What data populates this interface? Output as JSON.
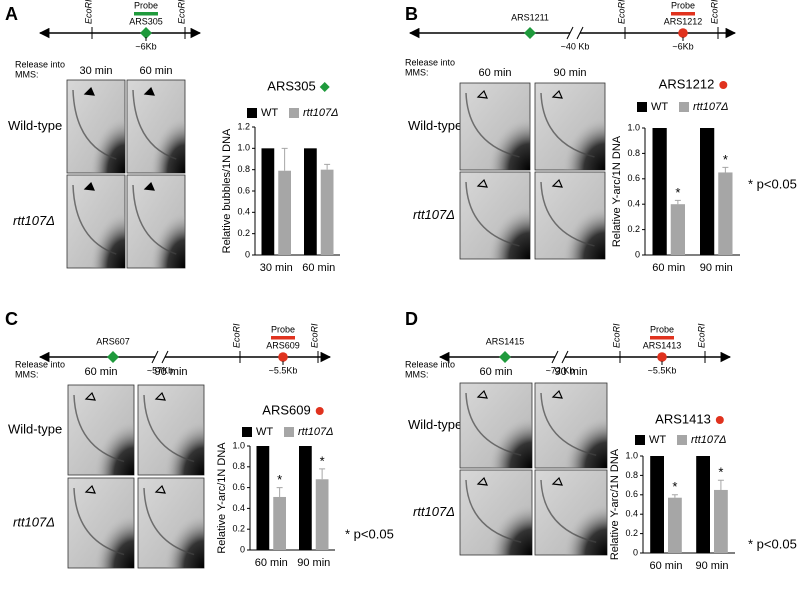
{
  "panels": [
    {
      "letter": "A",
      "map": {
        "ecori": [
          "EcoRI",
          "EcoRI"
        ],
        "probe": "Probe",
        "ars": "ARS305",
        "distance": "~6Kb"
      },
      "gel": {
        "release": [
          "Release into",
          "MMS:"
        ],
        "columns": [
          "30 min",
          "60 min"
        ],
        "rows": [
          "Wild-type",
          "rtt107Δ"
        ]
      }
    },
    {
      "letter": "B",
      "map": {
        "ars_left": "ARS1211",
        "gap": "~40 Kb",
        "ecori": [
          "EcoRI",
          "EcoRI"
        ],
        "probe": "Probe",
        "ars": "ARS1212",
        "distance": "~6Kb"
      },
      "gel": {
        "release": [
          "Release into",
          "MMS:"
        ],
        "columns": [
          "60 min",
          "90 min"
        ],
        "rows": [
          "Wild-type",
          "rtt107Δ"
        ]
      },
      "footnote": "* p<0.05"
    },
    {
      "letter": "C",
      "map": {
        "ars_left": "ARS607",
        "gap": "~57Kb",
        "ecori": [
          "EcoRI",
          "EcoRI"
        ],
        "probe": "Probe",
        "ars": "ARS609",
        "distance": "~5.5Kb"
      },
      "gel": {
        "release": [
          "Release into",
          "MMS:"
        ],
        "columns": [
          "60 min",
          "90 min"
        ],
        "rows": [
          "Wild-type",
          "rtt107Δ"
        ]
      },
      "footnote": "* p<0.05"
    },
    {
      "letter": "D",
      "map": {
        "ars_left": "ARS1415",
        "gap": "~72 Kb",
        "ecori": [
          "EcoRI",
          "EcoRI"
        ],
        "probe": "Probe",
        "ars": "ARS1413",
        "distance": "~5.5Kb"
      },
      "gel": {
        "release": [
          "Release into",
          "MMS:"
        ],
        "columns": [
          "60 min",
          "90 min"
        ],
        "rows": [
          "Wild-type",
          "rtt107Δ"
        ]
      },
      "footnote": "* p<0.05"
    }
  ],
  "chart_data": [
    {
      "type": "bar",
      "title": "ARS305",
      "marker": "diamond",
      "marker_color": "#1f9a3c",
      "y_label": "Relative bubbles/1N DNA",
      "categories": [
        "30 min",
        "60 min"
      ],
      "ylim": [
        0,
        1.2
      ],
      "yticks": [
        0,
        0.2,
        0.4,
        0.6,
        0.8,
        {
          "value": 1,
          "label": "1.0"
        },
        1.2
      ],
      "series": [
        {
          "name": "WT",
          "color": "#000000",
          "values": [
            1,
            1
          ]
        },
        {
          "name": "rtt107Δ",
          "color": "#a6a6a6",
          "values": [
            0.79,
            0.8
          ],
          "errors": [
            0.21,
            0.05
          ]
        }
      ]
    },
    {
      "type": "bar",
      "title": "ARS1212",
      "marker": "circle",
      "marker_color": "#e0321e",
      "y_label": "Relative Y-arc/1N DNA",
      "categories": [
        "60 min",
        "90 min"
      ],
      "ylim": [
        0,
        1
      ],
      "yticks": [
        0,
        0.2,
        0.4,
        0.6,
        0.8,
        {
          "value": 1,
          "label": "1.0"
        }
      ],
      "series": [
        {
          "name": "WT",
          "color": "#000000",
          "values": [
            1,
            1
          ]
        },
        {
          "name": "rtt107Δ",
          "color": "#a6a6a6",
          "values": [
            0.4,
            0.65
          ],
          "errors": [
            0.03,
            0.04
          ],
          "significance": [
            "*",
            "*"
          ]
        }
      ]
    },
    {
      "type": "bar",
      "title": "ARS609",
      "marker": "circle",
      "marker_color": "#e0321e",
      "y_label": "Relative Y-arc/1N DNA",
      "categories": [
        "60 min",
        "90 min"
      ],
      "ylim": [
        0,
        1
      ],
      "yticks": [
        0,
        0.2,
        0.4,
        0.6,
        0.8,
        {
          "value": 1,
          "label": "1.0"
        }
      ],
      "series": [
        {
          "name": "WT",
          "color": "#000000",
          "values": [
            1,
            1
          ]
        },
        {
          "name": "rtt107Δ",
          "color": "#a6a6a6",
          "values": [
            0.51,
            0.68
          ],
          "errors": [
            0.09,
            0.1
          ],
          "significance": [
            "*",
            "*"
          ]
        }
      ]
    },
    {
      "type": "bar",
      "title": "ARS1413",
      "marker": "circle",
      "marker_color": "#e0321e",
      "y_label": "Relative Y-arc/1N DNA",
      "categories": [
        "60 min",
        "90 min"
      ],
      "ylim": [
        0,
        1
      ],
      "yticks": [
        0,
        0.2,
        0.4,
        0.6,
        0.8,
        {
          "value": 1,
          "label": "1.0"
        }
      ],
      "series": [
        {
          "name": "WT",
          "color": "#000000",
          "values": [
            1,
            1
          ]
        },
        {
          "name": "rtt107Δ",
          "color": "#a6a6a6",
          "values": [
            0.57,
            0.65
          ],
          "errors": [
            0.03,
            0.1
          ],
          "significance": [
            "*",
            "*"
          ]
        }
      ]
    }
  ]
}
